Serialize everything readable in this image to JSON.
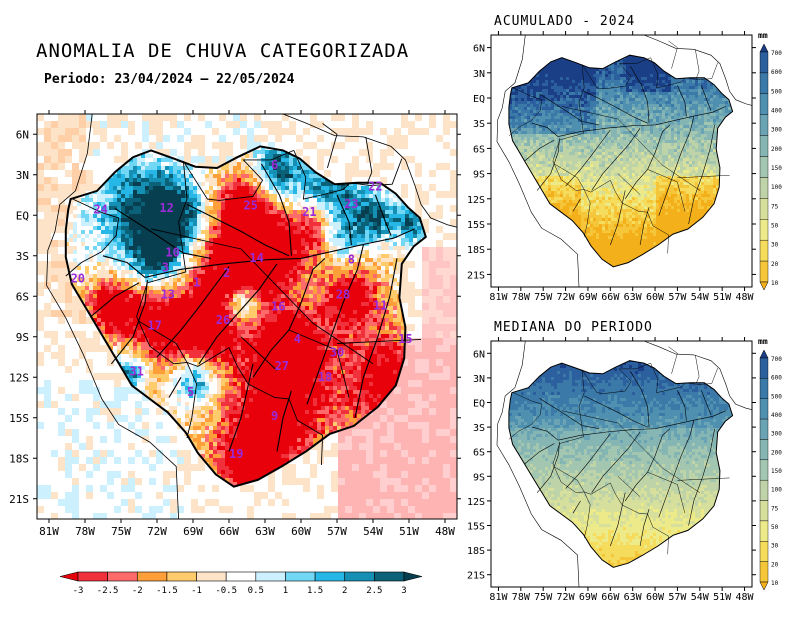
{
  "main": {
    "title": "ANOMALIA DE CHUVA CATEGORIZADA",
    "period": "Periodo: 23/04/2024 – 22/05/2024",
    "lat_ticks": [
      "6N",
      "3N",
      "EQ",
      "3S",
      "6S",
      "9S",
      "12S",
      "15S",
      "18S",
      "21S"
    ],
    "lon_ticks": [
      "81W",
      "78W",
      "75W",
      "72W",
      "69W",
      "66W",
      "63W",
      "60W",
      "57W",
      "54W",
      "51W",
      "48W"
    ],
    "basin_labels": [
      {
        "id": "24",
        "lon": -76.7,
        "lat": 0.5
      },
      {
        "id": "12",
        "lon": -71.2,
        "lat": 0.6
      },
      {
        "id": "25",
        "lon": -64.2,
        "lat": 0.8
      },
      {
        "id": "21",
        "lon": -59.3,
        "lat": 0.3
      },
      {
        "id": "23",
        "lon": -55.8,
        "lat": 0.9
      },
      {
        "id": "22",
        "lon": -53.8,
        "lat": 2.2
      },
      {
        "id": "6",
        "lon": -62.2,
        "lat": 3.8
      },
      {
        "id": "10",
        "lon": -70.7,
        "lat": -2.7
      },
      {
        "id": "3",
        "lon": -71.3,
        "lat": -3.8
      },
      {
        "id": "14",
        "lon": -63.7,
        "lat": -3.1
      },
      {
        "id": "1",
        "lon": -68.7,
        "lat": -4.9
      },
      {
        "id": "2",
        "lon": -66.2,
        "lat": -4.2
      },
      {
        "id": "8",
        "lon": -55.8,
        "lat": -3.2
      },
      {
        "id": "20",
        "lon": -78.6,
        "lat": -4.6
      },
      {
        "id": "13",
        "lon": -71.1,
        "lat": -5.8
      },
      {
        "id": "28",
        "lon": -56.5,
        "lat": -5.8
      },
      {
        "id": "11",
        "lon": -53.4,
        "lat": -6.6
      },
      {
        "id": "16",
        "lon": -61.9,
        "lat": -6.7
      },
      {
        "id": "17",
        "lon": -72.2,
        "lat": -8.1
      },
      {
        "id": "26",
        "lon": -66.5,
        "lat": -7.7
      },
      {
        "id": "4",
        "lon": -60.3,
        "lat": -9.1
      },
      {
        "id": "15",
        "lon": -51.3,
        "lat": -9.1
      },
      {
        "id": "30",
        "lon": -57.0,
        "lat": -10.1
      },
      {
        "id": "27",
        "lon": -61.6,
        "lat": -11.1
      },
      {
        "id": "31",
        "lon": -73.7,
        "lat": -11.5
      },
      {
        "id": "18",
        "lon": -58.0,
        "lat": -11.9
      },
      {
        "id": "5",
        "lon": -69.2,
        "lat": -13.0
      },
      {
        "id": "9",
        "lon": -62.2,
        "lat": -14.8
      },
      {
        "id": "19",
        "lon": -65.4,
        "lat": -17.6
      }
    ]
  },
  "colorbar": {
    "labels": [
      "-3",
      "-2.5",
      "-2",
      "-1.5",
      "-1",
      "-0.5",
      "0.5",
      "1",
      "1.5",
      "2",
      "2.5",
      "3"
    ],
    "colors": [
      "#e8000a",
      "#f0303a",
      "#ff6a6a",
      "#ff9f3a",
      "#ffcb6b",
      "#fde4c8",
      "#ffffff",
      "#cdf0ff",
      "#72d7f4",
      "#26b7e6",
      "#168fb5",
      "#0b6278",
      "#083f50"
    ]
  },
  "acumulado": {
    "title": "ACUMULADO - 2024",
    "lat_ticks": [
      "6N",
      "3N",
      "EQ",
      "3S",
      "6S",
      "9S",
      "12S",
      "15S",
      "18S",
      "21S"
    ],
    "lon_ticks": [
      "81W",
      "78W",
      "75W",
      "72W",
      "69W",
      "66W",
      "63W",
      "60W",
      "57W",
      "54W",
      "51W",
      "48W"
    ]
  },
  "mediana": {
    "title": "MEDIANA DO PERIODO",
    "lat_ticks": [
      "6N",
      "3N",
      "EQ",
      "3S",
      "6S",
      "9S",
      "12S",
      "15S",
      "18S",
      "21S"
    ],
    "lon_ticks": [
      "81W",
      "78W",
      "75W",
      "72W",
      "69W",
      "66W",
      "63W",
      "60W",
      "57W",
      "54W",
      "51W",
      "48W"
    ]
  },
  "legend": {
    "unit": "mm",
    "labels": [
      "700",
      "600",
      "500",
      "400",
      "300",
      "200",
      "150",
      "100",
      "75",
      "50",
      "30",
      "20",
      "10"
    ],
    "colors": [
      "#1b3f87",
      "#2c5f9e",
      "#3b79a8",
      "#4f8fb0",
      "#6aa3b3",
      "#86b6b3",
      "#a2c6b0",
      "#bed3a8",
      "#d7df9c",
      "#ecea89",
      "#f6dc5c",
      "#f6c63a",
      "#f3b01b"
    ]
  }
}
